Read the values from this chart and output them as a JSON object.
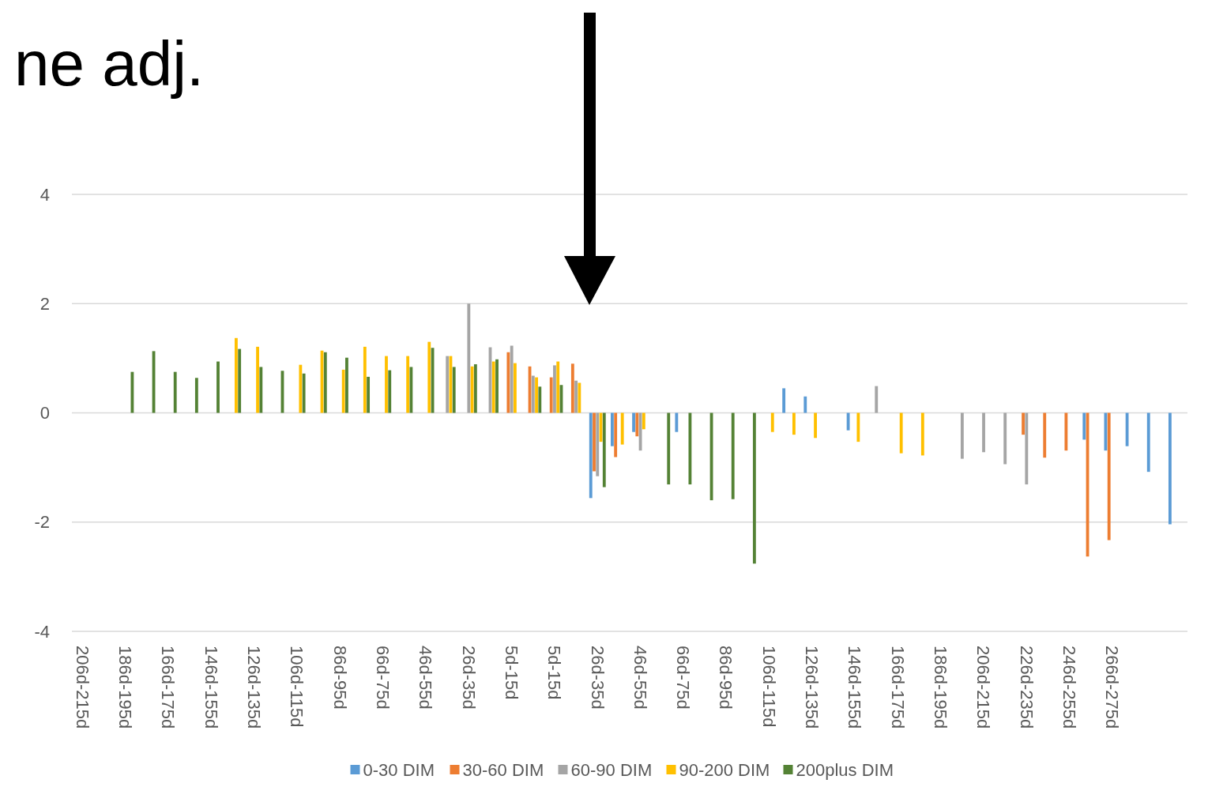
{
  "chart_data": {
    "type": "bar",
    "title": "ne adj.",
    "categories": [
      "206d-215d",
      null,
      "186d-195d",
      null,
      "166d-175d",
      null,
      "146d-155d",
      null,
      "126d-135d",
      null,
      "106d-115d",
      null,
      "86d-95d",
      null,
      "66d-75d",
      null,
      "46d-55d",
      null,
      "26d-35d",
      null,
      "5d-15d",
      null,
      "5d-15d",
      null,
      "26d-35d",
      null,
      "46d-55d",
      null,
      "66d-75d",
      null,
      "86d-95d",
      null,
      "106d-115d",
      null,
      "126d-135d",
      null,
      "146d-155d",
      null,
      "166d-175d",
      null,
      "186d-195d",
      null,
      "206d-215d",
      null,
      "226d-235d",
      null,
      "246d-255d",
      null,
      "266d-275d",
      null,
      null,
      null
    ],
    "series": [
      {
        "name": "0-30 DIM",
        "color": "#5b9bd5",
        "values": [
          null,
          null,
          null,
          null,
          null,
          null,
          null,
          null,
          null,
          null,
          null,
          null,
          null,
          null,
          null,
          null,
          null,
          null,
          null,
          null,
          null,
          null,
          null,
          null,
          -1.56,
          -0.61,
          -0.35,
          null,
          -0.35,
          null,
          null,
          null,
          null,
          0.45,
          0.3,
          null,
          -0.32,
          null,
          null,
          null,
          null,
          null,
          null,
          null,
          null,
          null,
          null,
          -0.49,
          -0.69,
          -0.61,
          -1.08,
          -2.04
        ]
      },
      {
        "name": "30-60 DIM",
        "color": "#ed7d31",
        "values": [
          null,
          null,
          null,
          null,
          null,
          null,
          null,
          null,
          null,
          null,
          null,
          null,
          null,
          null,
          null,
          null,
          null,
          null,
          null,
          null,
          1.11,
          0.85,
          0.65,
          0.9,
          -1.07,
          -0.81,
          -0.43,
          null,
          null,
          null,
          null,
          null,
          null,
          null,
          null,
          null,
          null,
          null,
          null,
          null,
          null,
          null,
          null,
          null,
          -0.4,
          -0.82,
          -0.69,
          -2.63,
          -2.33,
          null,
          null,
          null
        ]
      },
      {
        "name": "60-90 DIM",
        "color": "#a5a5a5",
        "values": [
          null,
          null,
          null,
          null,
          null,
          null,
          null,
          null,
          null,
          null,
          null,
          null,
          null,
          null,
          null,
          null,
          null,
          1.04,
          2.0,
          1.2,
          1.23,
          0.68,
          0.87,
          0.59,
          -1.16,
          null,
          -0.69,
          null,
          null,
          null,
          null,
          null,
          null,
          null,
          null,
          null,
          null,
          0.49,
          null,
          null,
          null,
          -0.84,
          -0.72,
          -0.94,
          -1.31,
          null,
          null,
          null,
          null,
          null,
          null,
          null
        ]
      },
      {
        "name": "90-200 DIM",
        "color": "#ffc000",
        "values": [
          null,
          null,
          null,
          null,
          null,
          null,
          null,
          1.37,
          1.21,
          null,
          0.88,
          1.14,
          0.79,
          1.21,
          1.04,
          1.04,
          1.3,
          1.04,
          0.85,
          0.94,
          0.91,
          0.65,
          0.94,
          0.55,
          -0.53,
          -0.58,
          -0.3,
          null,
          null,
          null,
          null,
          null,
          -0.35,
          -0.4,
          -0.46,
          null,
          -0.53,
          null,
          -0.74,
          -0.78,
          null,
          null,
          null,
          null,
          null,
          null,
          null,
          null,
          null,
          null,
          null,
          null
        ]
      },
      {
        "name": "200plus DIM",
        "color": "#548235",
        "values": [
          null,
          null,
          0.75,
          1.13,
          0.75,
          0.64,
          0.94,
          1.17,
          0.84,
          0.77,
          0.72,
          1.11,
          1.01,
          0.66,
          0.78,
          0.84,
          1.19,
          0.84,
          0.89,
          0.98,
          null,
          0.48,
          0.51,
          null,
          -1.36,
          null,
          null,
          -1.31,
          -1.31,
          -1.6,
          -1.58,
          -2.76,
          null,
          null,
          null,
          null,
          null,
          null,
          null,
          null,
          null,
          null,
          null,
          null,
          null,
          null,
          null,
          null,
          null,
          null,
          null,
          null
        ]
      }
    ],
    "ylim": [
      -4,
      4
    ],
    "yticks": [
      -4,
      -2,
      0,
      2,
      4
    ],
    "grid": "y",
    "legend": "bottom"
  }
}
